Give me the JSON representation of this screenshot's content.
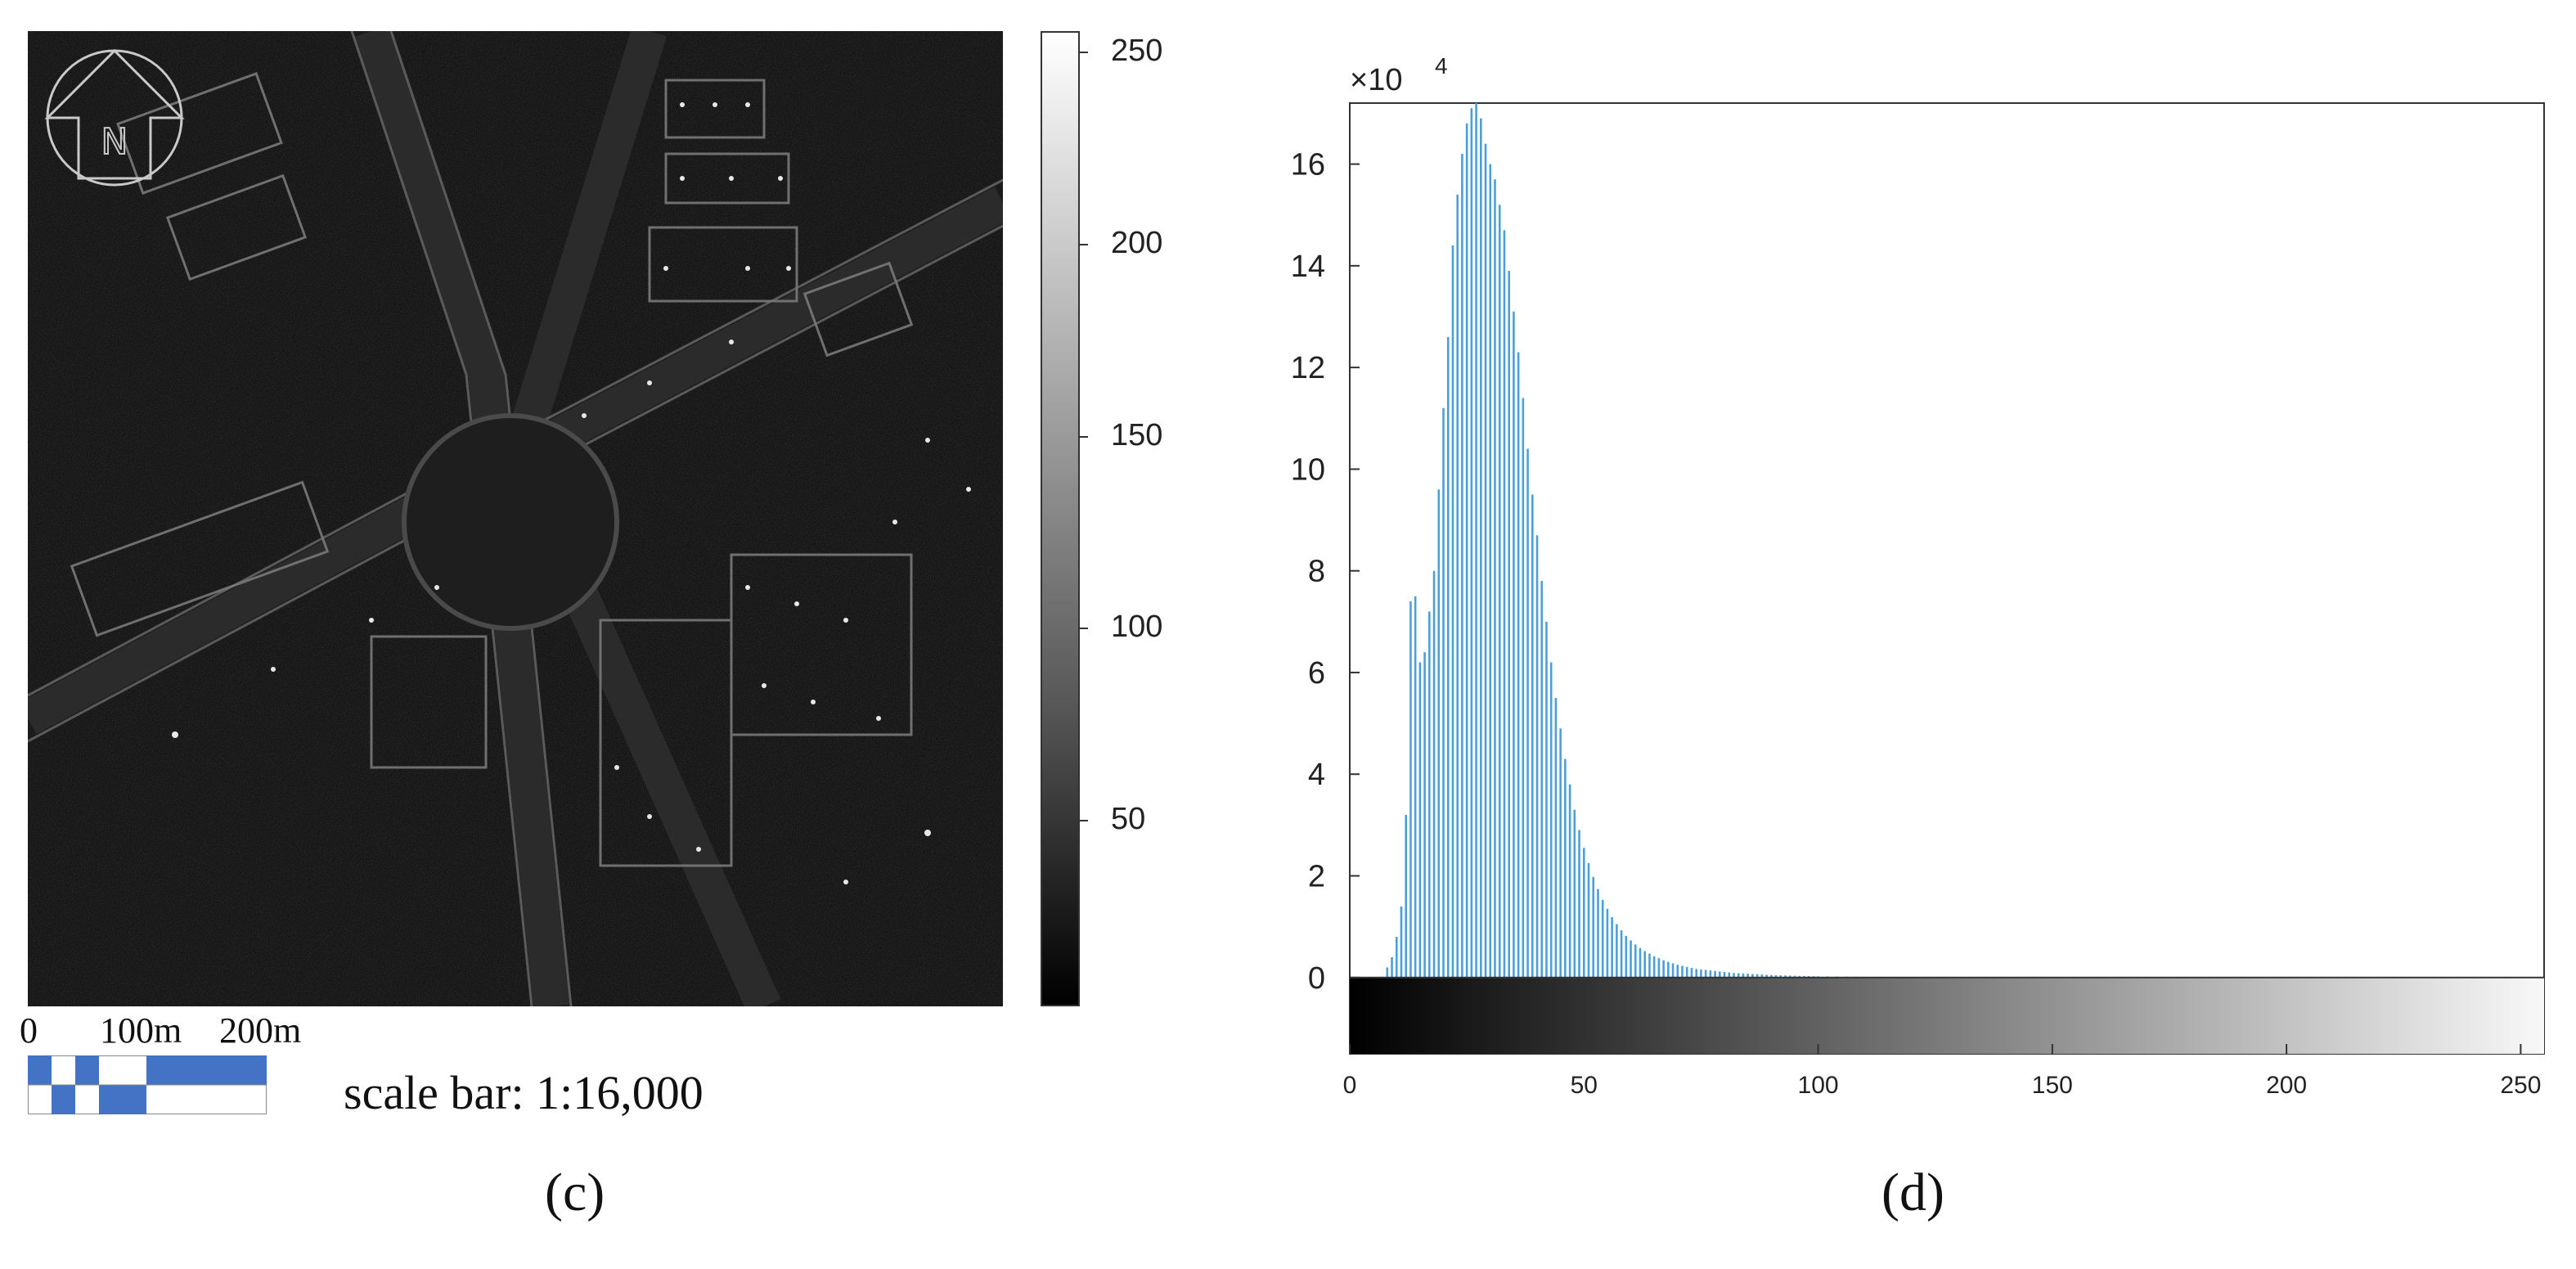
{
  "panel_c": {
    "label": "(c)",
    "colorbar": {
      "ticks": [
        50,
        100,
        150,
        200,
        250
      ],
      "min": 0,
      "max": 255
    },
    "scale_bar": {
      "ticks": [
        "0",
        "100m",
        "200m"
      ],
      "text": "scale bar: 1:16,000"
    },
    "north_arrow": {
      "letter": "N",
      "icon": "north-arrow-icon"
    }
  },
  "panel_d": {
    "label": "(d)"
  },
  "colors": {
    "bar": "#4a9fd8",
    "scale_bar_fill": "#4472c4"
  },
  "chart_data": {
    "type": "bar",
    "title": "",
    "xlabel": "",
    "ylabel": "",
    "xlim": [
      0,
      255
    ],
    "ylim": [
      -1.5,
      17.2
    ],
    "y_multiplier_label": "×10",
    "y_multiplier_exp": "4",
    "xticks": [
      0,
      50,
      100,
      150,
      200,
      250
    ],
    "yticks": [
      0,
      2,
      4,
      6,
      8,
      10,
      12,
      14,
      16
    ],
    "x": [
      8,
      9,
      10,
      11,
      12,
      13,
      14,
      15,
      16,
      17,
      18,
      19,
      20,
      21,
      22,
      23,
      24,
      25,
      26,
      27,
      28,
      29,
      30,
      31,
      32,
      33,
      34,
      35,
      36,
      37,
      38,
      39,
      40,
      41,
      42,
      43,
      44,
      45,
      46,
      47,
      48,
      49,
      50,
      51,
      52,
      53,
      54,
      55,
      56,
      57,
      58,
      59,
      60,
      61,
      62,
      63,
      64,
      65,
      66,
      67,
      68,
      69,
      70,
      71,
      72,
      73,
      74,
      75,
      76,
      77,
      78,
      79,
      80,
      81,
      82,
      83,
      84,
      85,
      86,
      87,
      88,
      89,
      90,
      91,
      92,
      93,
      94,
      95,
      96,
      97,
      98,
      99,
      100,
      102,
      104,
      106,
      108,
      110,
      112,
      114,
      116,
      118,
      120,
      122,
      124,
      126,
      128,
      130,
      135,
      140,
      145,
      150
    ],
    "values": [
      0.2,
      0.4,
      0.8,
      1.4,
      3.2,
      7.4,
      7.5,
      6.2,
      6.4,
      7.2,
      8.0,
      9.6,
      11.2,
      12.6,
      14.4,
      15.4,
      16.2,
      16.8,
      17.1,
      17.2,
      16.9,
      16.4,
      16.0,
      15.7,
      15.2,
      14.7,
      13.9,
      13.1,
      12.3,
      11.4,
      10.4,
      9.5,
      8.7,
      7.8,
      7.0,
      6.2,
      5.5,
      4.9,
      4.3,
      3.8,
      3.3,
      2.9,
      2.55,
      2.25,
      1.98,
      1.74,
      1.53,
      1.35,
      1.19,
      1.05,
      0.93,
      0.82,
      0.73,
      0.65,
      0.58,
      0.52,
      0.47,
      0.42,
      0.38,
      0.34,
      0.31,
      0.28,
      0.25,
      0.23,
      0.21,
      0.19,
      0.17,
      0.16,
      0.15,
      0.14,
      0.13,
      0.12,
      0.11,
      0.1,
      0.09,
      0.085,
      0.08,
      0.075,
      0.07,
      0.065,
      0.06,
      0.055,
      0.05,
      0.047,
      0.044,
      0.041,
      0.038,
      0.035,
      0.032,
      0.03,
      0.028,
      0.026,
      0.024,
      0.022,
      0.02,
      0.018,
      0.016,
      0.014,
      0.012,
      0.011,
      0.01,
      0.009,
      0.008,
      0.007,
      0.006,
      0.005,
      0.004,
      0.003,
      0.002,
      0.0015,
      0.001,
      0.0005
    ],
    "grid": false,
    "colorbar_strip": {
      "min": 0,
      "max": 255,
      "orientation": "horizontal"
    }
  }
}
